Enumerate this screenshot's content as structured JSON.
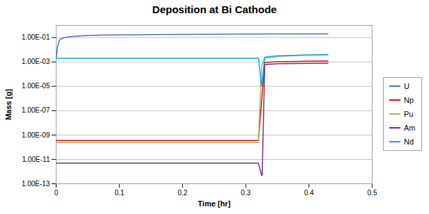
{
  "chart_data": {
    "type": "line",
    "title": "Deposition at Bi Cathode",
    "xlabel": "Time [hr]",
    "ylabel": "Mass [g]",
    "log": "y",
    "xlim": [
      0,
      0.5
    ],
    "ylim": [
      1e-13,
      1
    ],
    "xticks": [
      0,
      0.1,
      0.2,
      0.3,
      0.4,
      0.5
    ],
    "yticks": [
      {
        "value": 1e-13,
        "label": "1.00E-13"
      },
      {
        "value": 1e-11,
        "label": "1.00E-11"
      },
      {
        "value": 1e-09,
        "label": "1.00E-09"
      },
      {
        "value": 1e-07,
        "label": "1.00E-07"
      },
      {
        "value": 1e-05,
        "label": "1.00E-05"
      },
      {
        "value": 0.001,
        "label": "1.00E-03"
      },
      {
        "value": 0.1,
        "label": "1.00E-01"
      }
    ],
    "grid": true,
    "legend": "right",
    "series": [
      {
        "name": "U",
        "color": "#4472c4",
        "x": [
          0.0,
          0.002,
          0.005,
          0.01,
          0.02,
          0.04,
          0.07,
          0.1,
          0.15,
          0.2,
          0.25,
          0.3,
          0.32,
          0.35,
          0.4,
          0.43
        ],
        "values": [
          0.002,
          0.015,
          0.06,
          0.09,
          0.115,
          0.14,
          0.157,
          0.165,
          0.175,
          0.182,
          0.187,
          0.192,
          0.194,
          0.197,
          0.2,
          0.202
        ]
      },
      {
        "name": "Np",
        "color": "#ff0000",
        "x": [
          0,
          0.31,
          0.315,
          0.32,
          0.33,
          0.35,
          0.38,
          0.4,
          0.43
        ],
        "values": [
          3.5e-10,
          3.5e-10,
          3.5e-10,
          3.5e-10,
          0.0009,
          0.00105,
          0.0011,
          0.00115,
          0.00118
        ]
      },
      {
        "name": "Pu",
        "color": "#9bba59",
        "x": [
          0,
          0.31,
          0.315,
          0.32,
          0.325,
          0.33,
          0.35,
          0.38,
          0.4,
          0.43
        ],
        "values": [
          2.5e-10,
          2.5e-10,
          2.5e-10,
          2.5e-10,
          0.0005,
          0.002,
          0.0028,
          0.0033,
          0.0035,
          0.0036
        ]
      },
      {
        "name": "Am",
        "color": "#7030a0",
        "x": [
          0,
          0.31,
          0.315,
          0.32,
          0.325,
          0.326,
          0.33,
          0.35,
          0.4,
          0.43
        ],
        "values": [
          5e-12,
          5e-12,
          5e-12,
          5e-12,
          5e-13,
          5e-13,
          0.0006,
          0.0007,
          0.00075,
          0.00078
        ]
      },
      {
        "name": "Nd",
        "color": "#00b0f0",
        "x": [
          0,
          0.31,
          0.315,
          0.32,
          0.325,
          0.33,
          0.35,
          0.4,
          0.43
        ],
        "values": [
          0.002,
          0.002,
          0.002,
          0.002,
          1e-05,
          0.0025,
          0.0032,
          0.0038,
          0.004
        ]
      }
    ]
  }
}
